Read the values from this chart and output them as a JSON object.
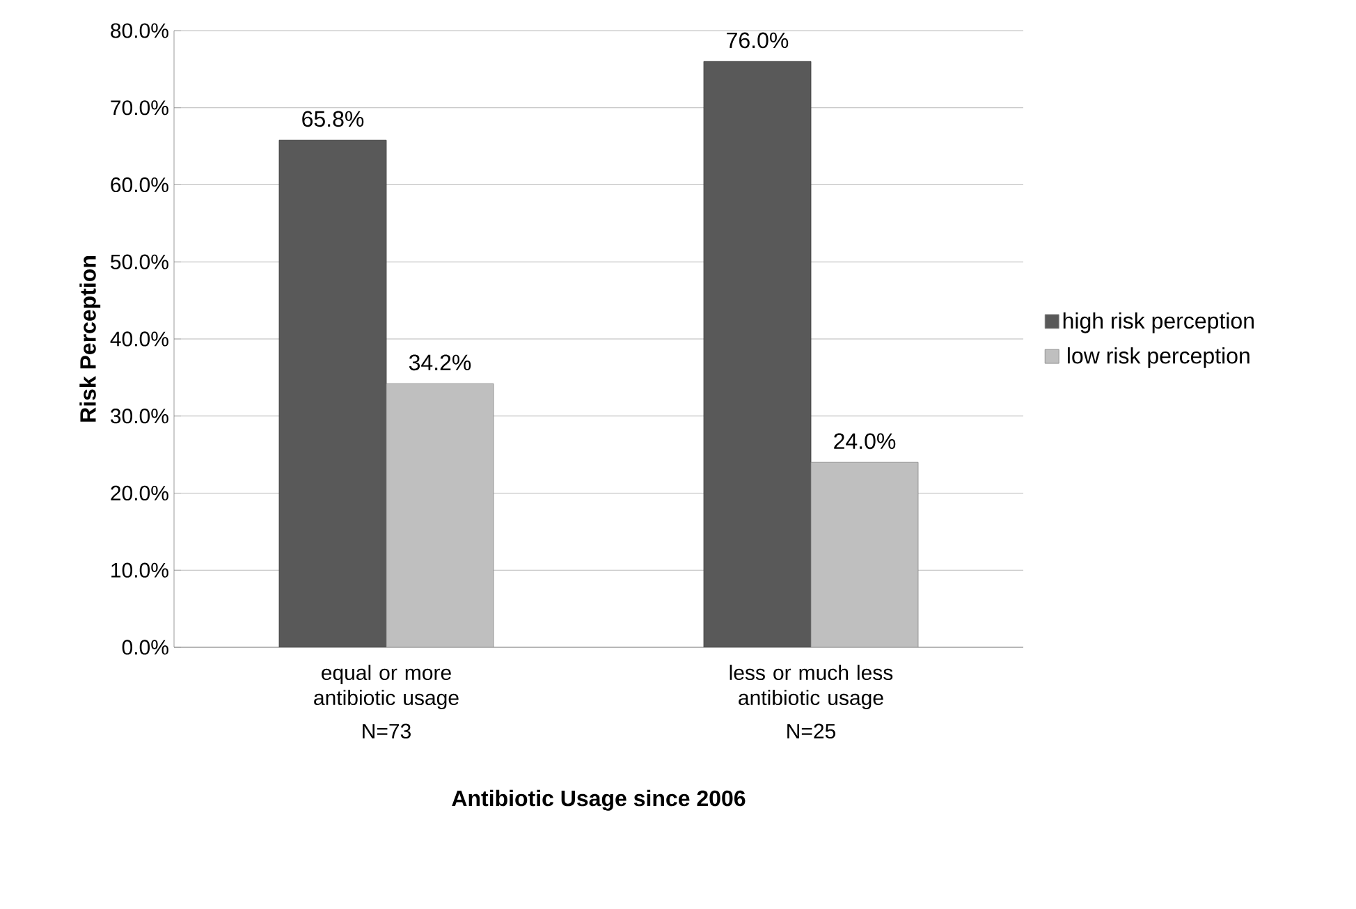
{
  "chart_data": {
    "type": "bar",
    "xlabel": "Antibiotic Usage since 2006",
    "ylabel": "Risk Perception",
    "categories": [
      "equal or more antibiotic usage",
      "less or much less antibiotic usage"
    ],
    "annotations": [
      "N=73",
      "N=25"
    ],
    "series": [
      {
        "name": "high risk perception",
        "color": "#595959",
        "values": [
          65.8,
          76.0
        ],
        "value_labels": [
          "65.8%",
          "76.0%"
        ]
      },
      {
        "name": "low risk perception",
        "color": "#bfbfbf",
        "values": [
          34.2,
          24.0
        ],
        "value_labels": [
          "34.2%",
          "24.0%"
        ]
      }
    ],
    "ylim": [
      0,
      80
    ],
    "yticks": [
      {
        "value": 0,
        "label": "0.0%"
      },
      {
        "value": 10,
        "label": "10.0%"
      },
      {
        "value": 20,
        "label": "20.0%"
      },
      {
        "value": 30,
        "label": "30.0%"
      },
      {
        "value": 40,
        "label": "40.0%"
      },
      {
        "value": 50,
        "label": "50.0%"
      },
      {
        "value": 60,
        "label": "60.0%"
      },
      {
        "value": 70,
        "label": "70.0%"
      },
      {
        "value": 80,
        "label": "80.0%"
      }
    ],
    "grid": "y",
    "legend": "right"
  }
}
